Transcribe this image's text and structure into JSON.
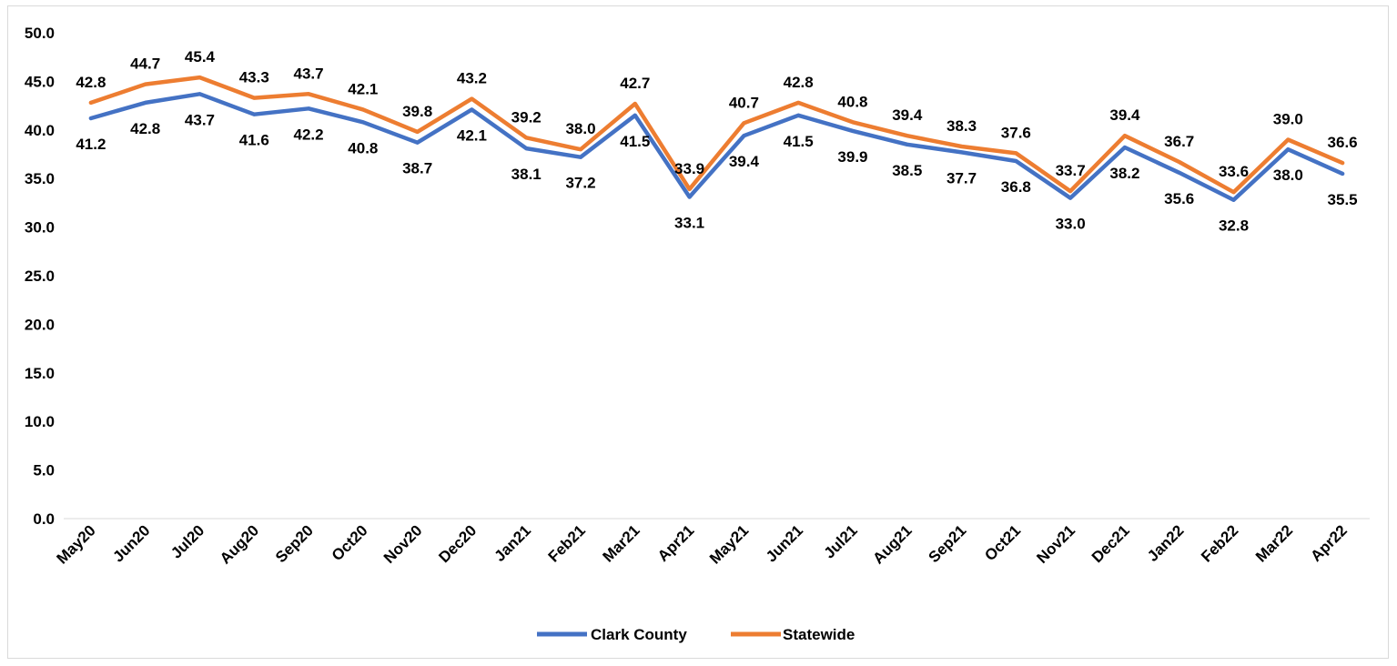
{
  "chart_data": {
    "type": "line",
    "categories": [
      "May20",
      "Jun20",
      "Jul20",
      "Aug20",
      "Sep20",
      "Oct20",
      "Nov20",
      "Dec20",
      "Jan21",
      "Feb21",
      "Mar21",
      "Apr21",
      "May21",
      "Jun21",
      "Jul21",
      "Aug21",
      "Sep21",
      "Oct21",
      "Nov21",
      "Dec21",
      "Jan22",
      "Feb22",
      "Mar22",
      "Apr22"
    ],
    "series": [
      {
        "name": "Clark County",
        "color": "#4472C4",
        "values": [
          41.2,
          42.8,
          43.7,
          41.6,
          42.2,
          40.8,
          38.7,
          42.1,
          38.1,
          37.2,
          41.5,
          33.1,
          39.4,
          41.5,
          39.9,
          38.5,
          37.7,
          36.8,
          33.0,
          38.2,
          35.6,
          32.8,
          38.0,
          35.5
        ],
        "labels": [
          "41.2",
          "42.8",
          "43.7",
          "41.6",
          "42.2",
          "40.8",
          "38.7",
          "42.1",
          "38.1",
          "37.2",
          "41.5",
          "33.1",
          "39.4",
          "41.5",
          "39.9",
          "38.5",
          "37.7",
          "36.8",
          "33.0",
          "38.2",
          "35.6",
          "32.8",
          "38.0",
          "35.5"
        ]
      },
      {
        "name": "Statewide",
        "color": "#ED7D31",
        "values": [
          42.8,
          44.7,
          45.4,
          43.3,
          43.7,
          42.1,
          39.8,
          43.2,
          39.2,
          38.0,
          42.7,
          33.9,
          40.7,
          42.8,
          40.8,
          39.4,
          38.3,
          37.6,
          33.7,
          39.4,
          36.7,
          33.6,
          39.0,
          36.6
        ],
        "labels": [
          "42.8",
          "44.7",
          "45.4",
          "43.3",
          "43.7",
          "42.1",
          "39.8",
          "43.2",
          "39.2",
          "38.0",
          "42.7",
          "33.9",
          "40.7",
          "42.8",
          "40.8",
          "39.4",
          "38.3",
          "37.6",
          "33.7",
          "39.4",
          "36.7",
          "33.6",
          "39.0",
          "36.6"
        ]
      }
    ],
    "y_ticks": [
      "0.0",
      "5.0",
      "10.0",
      "15.0",
      "20.0",
      "25.0",
      "30.0",
      "35.0",
      "40.0",
      "45.0",
      "50.0"
    ],
    "ylim": [
      0,
      50
    ],
    "grid": false,
    "legend_position": "bottom",
    "title": "",
    "xlabel": "",
    "ylabel": ""
  }
}
